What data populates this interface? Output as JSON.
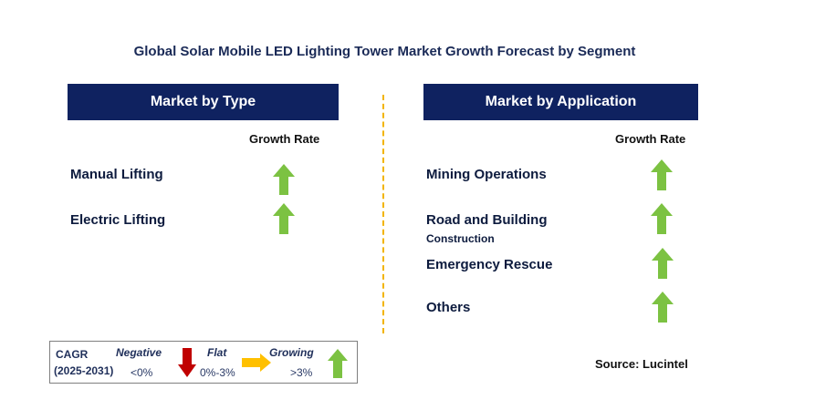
{
  "title": "Global Solar Mobile LED Lighting Tower Market Growth Forecast by Segment",
  "left_panel": {
    "header": "Market by Type",
    "growth_rate_label": "Growth Rate",
    "items": [
      "Manual Lifting",
      "Electric Lifting"
    ]
  },
  "right_panel": {
    "header": "Market by Application",
    "growth_rate_label": "Growth Rate",
    "items": [
      "Mining Operations",
      "Road and Building",
      "Emergency Rescue",
      "Others"
    ],
    "item_sublabel": "Construction"
  },
  "legend": {
    "cagr_label": "CAGR",
    "period_label": "(2025-2031)",
    "negative_label": "Negative",
    "negative_value": "<0%",
    "flat_label": "Flat",
    "flat_value": "0%-3%",
    "growing_label": "Growing",
    "growing_value": ">3%"
  },
  "source": "Source: Lucintel",
  "colors": {
    "header_bg": "#0f2260",
    "growing_arrow": "#7cc242",
    "negative_arrow": "#c00000",
    "flat_arrow": "#ffc000",
    "divider": "#f2b400"
  },
  "icons": {
    "growing": "up-arrow-icon",
    "negative": "down-arrow-icon",
    "flat": "right-arrow-icon"
  }
}
